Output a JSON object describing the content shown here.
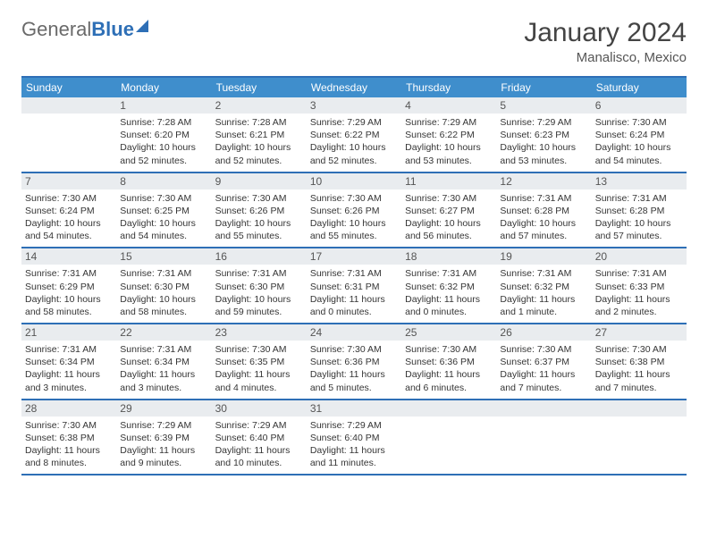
{
  "logo": {
    "word1": "General",
    "word2": "Blue"
  },
  "title": "January 2024",
  "subtitle": "Manalisco, Mexico",
  "day_names": [
    "Sunday",
    "Monday",
    "Tuesday",
    "Wednesday",
    "Thursday",
    "Friday",
    "Saturday"
  ],
  "colors": {
    "accent": "#2e6fb6",
    "header_bg": "#3f8ecc",
    "daynum_bg": "#e9ecef",
    "text": "#353535"
  },
  "weeks": [
    [
      {
        "n": "",
        "sr": "",
        "ss": "",
        "dl1": "",
        "dl2": ""
      },
      {
        "n": "1",
        "sr": "Sunrise: 7:28 AM",
        "ss": "Sunset: 6:20 PM",
        "dl1": "Daylight: 10 hours",
        "dl2": "and 52 minutes."
      },
      {
        "n": "2",
        "sr": "Sunrise: 7:28 AM",
        "ss": "Sunset: 6:21 PM",
        "dl1": "Daylight: 10 hours",
        "dl2": "and 52 minutes."
      },
      {
        "n": "3",
        "sr": "Sunrise: 7:29 AM",
        "ss": "Sunset: 6:22 PM",
        "dl1": "Daylight: 10 hours",
        "dl2": "and 52 minutes."
      },
      {
        "n": "4",
        "sr": "Sunrise: 7:29 AM",
        "ss": "Sunset: 6:22 PM",
        "dl1": "Daylight: 10 hours",
        "dl2": "and 53 minutes."
      },
      {
        "n": "5",
        "sr": "Sunrise: 7:29 AM",
        "ss": "Sunset: 6:23 PM",
        "dl1": "Daylight: 10 hours",
        "dl2": "and 53 minutes."
      },
      {
        "n": "6",
        "sr": "Sunrise: 7:30 AM",
        "ss": "Sunset: 6:24 PM",
        "dl1": "Daylight: 10 hours",
        "dl2": "and 54 minutes."
      }
    ],
    [
      {
        "n": "7",
        "sr": "Sunrise: 7:30 AM",
        "ss": "Sunset: 6:24 PM",
        "dl1": "Daylight: 10 hours",
        "dl2": "and 54 minutes."
      },
      {
        "n": "8",
        "sr": "Sunrise: 7:30 AM",
        "ss": "Sunset: 6:25 PM",
        "dl1": "Daylight: 10 hours",
        "dl2": "and 54 minutes."
      },
      {
        "n": "9",
        "sr": "Sunrise: 7:30 AM",
        "ss": "Sunset: 6:26 PM",
        "dl1": "Daylight: 10 hours",
        "dl2": "and 55 minutes."
      },
      {
        "n": "10",
        "sr": "Sunrise: 7:30 AM",
        "ss": "Sunset: 6:26 PM",
        "dl1": "Daylight: 10 hours",
        "dl2": "and 55 minutes."
      },
      {
        "n": "11",
        "sr": "Sunrise: 7:30 AM",
        "ss": "Sunset: 6:27 PM",
        "dl1": "Daylight: 10 hours",
        "dl2": "and 56 minutes."
      },
      {
        "n": "12",
        "sr": "Sunrise: 7:31 AM",
        "ss": "Sunset: 6:28 PM",
        "dl1": "Daylight: 10 hours",
        "dl2": "and 57 minutes."
      },
      {
        "n": "13",
        "sr": "Sunrise: 7:31 AM",
        "ss": "Sunset: 6:28 PM",
        "dl1": "Daylight: 10 hours",
        "dl2": "and 57 minutes."
      }
    ],
    [
      {
        "n": "14",
        "sr": "Sunrise: 7:31 AM",
        "ss": "Sunset: 6:29 PM",
        "dl1": "Daylight: 10 hours",
        "dl2": "and 58 minutes."
      },
      {
        "n": "15",
        "sr": "Sunrise: 7:31 AM",
        "ss": "Sunset: 6:30 PM",
        "dl1": "Daylight: 10 hours",
        "dl2": "and 58 minutes."
      },
      {
        "n": "16",
        "sr": "Sunrise: 7:31 AM",
        "ss": "Sunset: 6:30 PM",
        "dl1": "Daylight: 10 hours",
        "dl2": "and 59 minutes."
      },
      {
        "n": "17",
        "sr": "Sunrise: 7:31 AM",
        "ss": "Sunset: 6:31 PM",
        "dl1": "Daylight: 11 hours",
        "dl2": "and 0 minutes."
      },
      {
        "n": "18",
        "sr": "Sunrise: 7:31 AM",
        "ss": "Sunset: 6:32 PM",
        "dl1": "Daylight: 11 hours",
        "dl2": "and 0 minutes."
      },
      {
        "n": "19",
        "sr": "Sunrise: 7:31 AM",
        "ss": "Sunset: 6:32 PM",
        "dl1": "Daylight: 11 hours",
        "dl2": "and 1 minute."
      },
      {
        "n": "20",
        "sr": "Sunrise: 7:31 AM",
        "ss": "Sunset: 6:33 PM",
        "dl1": "Daylight: 11 hours",
        "dl2": "and 2 minutes."
      }
    ],
    [
      {
        "n": "21",
        "sr": "Sunrise: 7:31 AM",
        "ss": "Sunset: 6:34 PM",
        "dl1": "Daylight: 11 hours",
        "dl2": "and 3 minutes."
      },
      {
        "n": "22",
        "sr": "Sunrise: 7:31 AM",
        "ss": "Sunset: 6:34 PM",
        "dl1": "Daylight: 11 hours",
        "dl2": "and 3 minutes."
      },
      {
        "n": "23",
        "sr": "Sunrise: 7:30 AM",
        "ss": "Sunset: 6:35 PM",
        "dl1": "Daylight: 11 hours",
        "dl2": "and 4 minutes."
      },
      {
        "n": "24",
        "sr": "Sunrise: 7:30 AM",
        "ss": "Sunset: 6:36 PM",
        "dl1": "Daylight: 11 hours",
        "dl2": "and 5 minutes."
      },
      {
        "n": "25",
        "sr": "Sunrise: 7:30 AM",
        "ss": "Sunset: 6:36 PM",
        "dl1": "Daylight: 11 hours",
        "dl2": "and 6 minutes."
      },
      {
        "n": "26",
        "sr": "Sunrise: 7:30 AM",
        "ss": "Sunset: 6:37 PM",
        "dl1": "Daylight: 11 hours",
        "dl2": "and 7 minutes."
      },
      {
        "n": "27",
        "sr": "Sunrise: 7:30 AM",
        "ss": "Sunset: 6:38 PM",
        "dl1": "Daylight: 11 hours",
        "dl2": "and 7 minutes."
      }
    ],
    [
      {
        "n": "28",
        "sr": "Sunrise: 7:30 AM",
        "ss": "Sunset: 6:38 PM",
        "dl1": "Daylight: 11 hours",
        "dl2": "and 8 minutes."
      },
      {
        "n": "29",
        "sr": "Sunrise: 7:29 AM",
        "ss": "Sunset: 6:39 PM",
        "dl1": "Daylight: 11 hours",
        "dl2": "and 9 minutes."
      },
      {
        "n": "30",
        "sr": "Sunrise: 7:29 AM",
        "ss": "Sunset: 6:40 PM",
        "dl1": "Daylight: 11 hours",
        "dl2": "and 10 minutes."
      },
      {
        "n": "31",
        "sr": "Sunrise: 7:29 AM",
        "ss": "Sunset: 6:40 PM",
        "dl1": "Daylight: 11 hours",
        "dl2": "and 11 minutes."
      },
      {
        "n": "",
        "sr": "",
        "ss": "",
        "dl1": "",
        "dl2": ""
      },
      {
        "n": "",
        "sr": "",
        "ss": "",
        "dl1": "",
        "dl2": ""
      },
      {
        "n": "",
        "sr": "",
        "ss": "",
        "dl1": "",
        "dl2": ""
      }
    ]
  ]
}
